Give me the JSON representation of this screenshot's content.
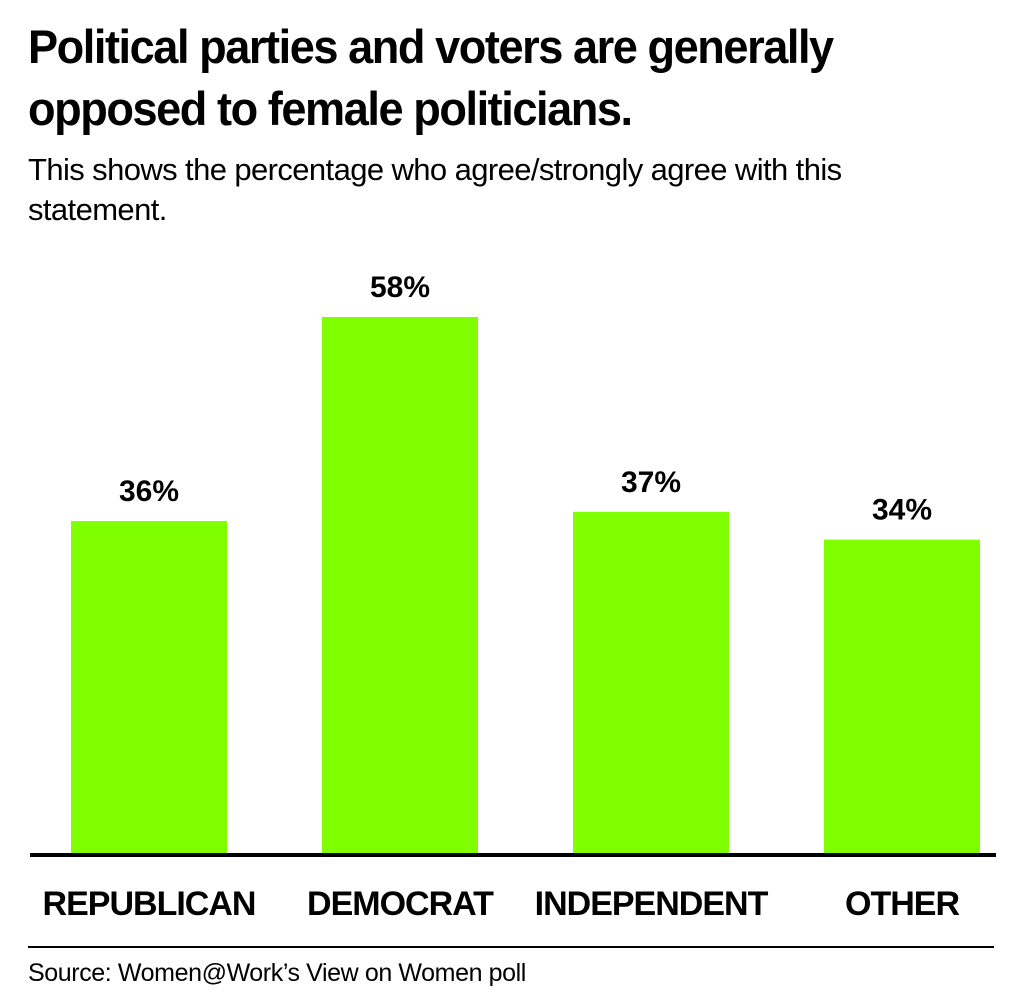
{
  "header": {
    "title": "Political parties and voters are generally opposed to female politicians.",
    "subtitle": "This shows the percentage who agree/strongly agree with this statement."
  },
  "footer": {
    "source": "Source: Women@Work’s View on Women poll"
  },
  "colors": {
    "bar": "#80ff00",
    "axis": "#000000",
    "text": "#000000"
  },
  "chart_data": {
    "type": "bar",
    "title": "Political parties and voters are generally opposed to female politicians.",
    "subtitle": "This shows the percentage who agree/strongly agree with this statement.",
    "categories": [
      "REPUBLICAN",
      "DEMOCRAT",
      "INDEPENDENT",
      "OTHER"
    ],
    "values": [
      36,
      58,
      37,
      34
    ],
    "value_labels": [
      "36%",
      "58%",
      "37%",
      "34%"
    ],
    "unit": "%",
    "xlabel": "",
    "ylabel": "",
    "ylim": [
      0,
      58
    ],
    "grid": false,
    "legend": "none"
  }
}
